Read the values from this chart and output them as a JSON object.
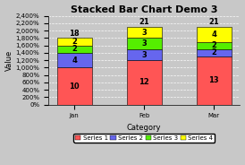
{
  "title": "Stacked Bar Chart Demo 3",
  "categories": [
    "Jan",
    "Feb",
    "Mar"
  ],
  "series": {
    "Series 1": [
      1000,
      1200,
      1300
    ],
    "Series 2": [
      400,
      300,
      200
    ],
    "Series 3": [
      200,
      300,
      200
    ],
    "Series 4": [
      200,
      300,
      400
    ]
  },
  "series_labels": {
    "Series 1": [
      10,
      12,
      13
    ],
    "Series 2": [
      4,
      3,
      2
    ],
    "Series 3": [
      2,
      3,
      2
    ],
    "Series 4": [
      2,
      3,
      4
    ]
  },
  "totals": [
    18,
    21,
    21
  ],
  "colors": {
    "Series 1": "#FF5555",
    "Series 2": "#6666EE",
    "Series 3": "#55EE00",
    "Series 4": "#FFFF00"
  },
  "xlabel": "Category",
  "ylabel": "Value",
  "ylim": [
    0,
    2400
  ],
  "ytick_step": 200,
  "bar_width": 0.5,
  "background_color": "#C8C8C8",
  "plot_bg_color": "#C8C8C8",
  "title_fontsize": 8,
  "label_fontsize": 6,
  "tick_fontsize": 5,
  "legend_fontsize": 5
}
